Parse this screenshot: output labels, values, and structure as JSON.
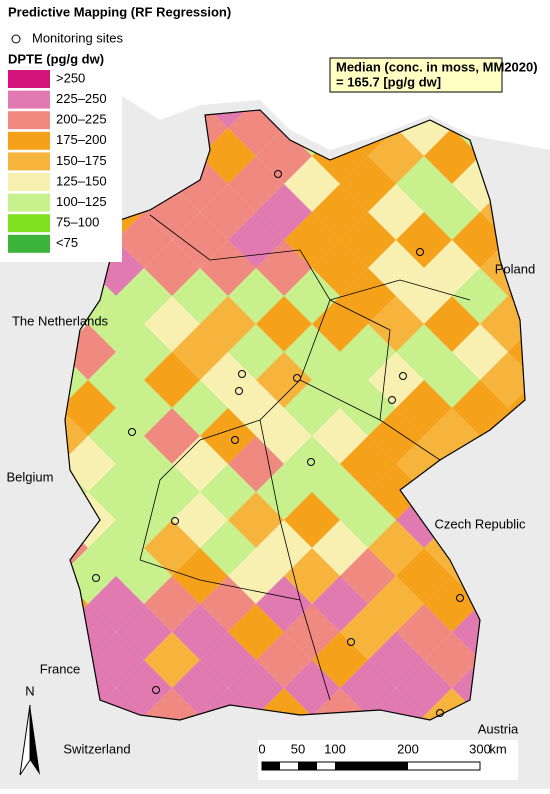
{
  "title": "Predictive Mapping (RF Regression)",
  "legend": {
    "sites_label": "Monitoring sites",
    "title": "DPTE (pg/g dw)",
    "entries": [
      {
        "label": ">250",
        "color": "#d4147a"
      },
      {
        "label": "225–250",
        "color": "#e07ab0"
      },
      {
        "label": "200–225",
        "color": "#f08a80"
      },
      {
        "label": "175–200",
        "color": "#f5a21a"
      },
      {
        "label": "150–175",
        "color": "#f7b43c"
      },
      {
        "label": "125–150",
        "color": "#f8f0b0"
      },
      {
        "label": "100–125",
        "color": "#c8f08c"
      },
      {
        "label": "75–100",
        "color": "#7fe01e"
      },
      {
        "label": "<75",
        "color": "#3cb43c"
      }
    ]
  },
  "median_note": {
    "line1": "Median (conc. in moss, MM2020)",
    "line2": "= 165.7 [pg/g dw]"
  },
  "countries": [
    "Poland",
    "The Netherlands",
    "Belgium",
    "Czech Republic",
    "France",
    "Austria",
    "Switzerland"
  ],
  "north": "N",
  "scale": {
    "ticks": [
      "0",
      "50",
      "100",
      "200",
      "300"
    ],
    "unit": "km"
  }
}
